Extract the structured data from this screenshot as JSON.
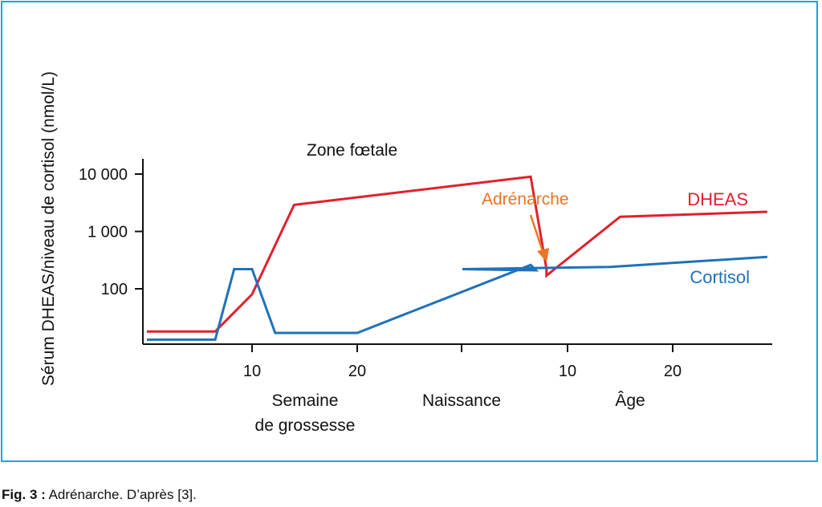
{
  "chart_data": {
    "type": "line",
    "ylabel": "Sérum DHEAS/niveau de cortisol (nmol/L)",
    "y_scale": "log",
    "y_ticks": [
      {
        "value": 100,
        "label": "100"
      },
      {
        "value": 1000,
        "label": "1 000"
      },
      {
        "value": 10000,
        "label": "10 000"
      }
    ],
    "x_segments": [
      {
        "label_lines": [
          "Semaine",
          "de grossesse"
        ],
        "ticks": [
          "10",
          "20"
        ]
      },
      {
        "label_lines": [
          "Naissance"
        ],
        "ticks": []
      },
      {
        "label_lines": [
          "Âge"
        ],
        "ticks": [
          "10",
          "20"
        ]
      }
    ],
    "annotations": {
      "phase": "Zone fœtale",
      "event": "Adrénarche"
    },
    "series": [
      {
        "name": "DHEAS",
        "color": "#e2202d",
        "points": [
          {
            "period": "Semaine de grossesse",
            "x": 0,
            "y": 18
          },
          {
            "period": "Semaine de grossesse",
            "x": 6.5,
            "y": 18
          },
          {
            "period": "Semaine de grossesse",
            "x": 10,
            "y": 80
          },
          {
            "period": "Semaine de grossesse",
            "x": 14,
            "y": 2900
          },
          {
            "period": "Naissance",
            "x": 36.5,
            "y": 9000
          },
          {
            "period": "Naissance",
            "x": 38,
            "y": 220
          },
          {
            "period": "Âge",
            "x": 8,
            "y": 170
          },
          {
            "period": "Âge",
            "x": 15,
            "y": 1800
          },
          {
            "period": "Âge",
            "x": 29,
            "y": 2200
          }
        ]
      },
      {
        "name": "Cortisol",
        "color": "#1f72b8",
        "points": [
          {
            "period": "Semaine de grossesse",
            "x": 0,
            "y": 13
          },
          {
            "period": "Semaine de grossesse",
            "x": 6.5,
            "y": 13
          },
          {
            "period": "Semaine de grossesse",
            "x": 8.3,
            "y": 220
          },
          {
            "period": "Semaine de grossesse",
            "x": 10,
            "y": 220
          },
          {
            "period": "Semaine de grossesse",
            "x": 12.2,
            "y": 17
          },
          {
            "period": "Semaine de grossesse",
            "x": 20,
            "y": 17
          },
          {
            "period": "Naissance",
            "x": 36.5,
            "y": 260
          },
          {
            "period": "Naissance",
            "x": 37,
            "y": 210
          },
          {
            "period": "Âge",
            "x": 0,
            "y": 220
          },
          {
            "period": "Âge",
            "x": 14,
            "y": 240
          },
          {
            "period": "Âge",
            "x": 29,
            "y": 360
          }
        ]
      }
    ]
  },
  "caption": {
    "label": "Fig. 3 :",
    "text": "Adrénarche. D’après [3]."
  }
}
